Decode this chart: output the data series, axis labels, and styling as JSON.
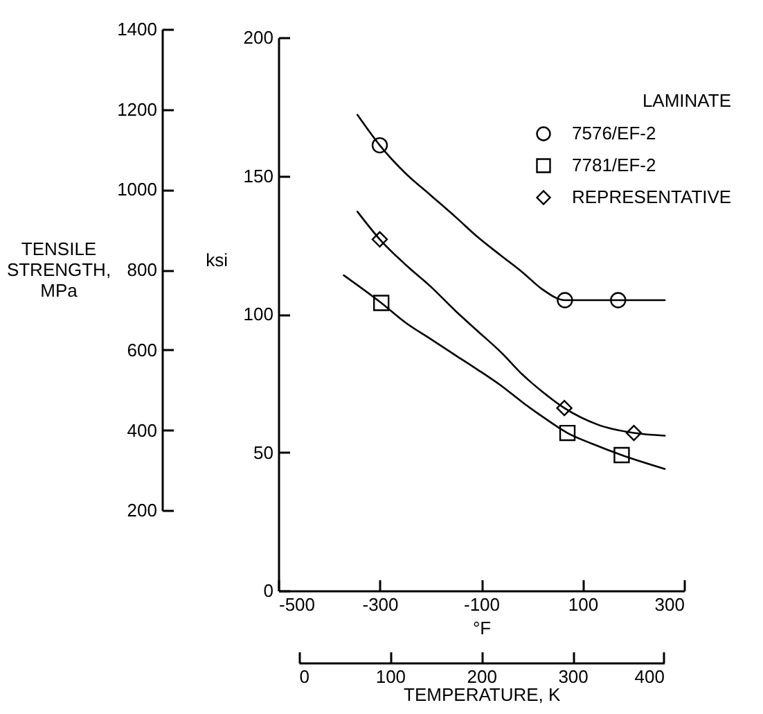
{
  "chart_data": {
    "type": "scatter",
    "xlabel": "°F",
    "ylabel": "ksi",
    "y2label": "TENSILE STRENGTH, MPa",
    "x2label": "TEMPERATURE, K",
    "legend_title": "LAMINATE",
    "xlim": [
      -500,
      300
    ],
    "xticks": [
      -500,
      -300,
      -100,
      100,
      300
    ],
    "ylim": [
      0,
      200
    ],
    "yticks": [
      0,
      50,
      100,
      150,
      200
    ],
    "y2lim": [
      200,
      1400
    ],
    "y2ticks": [
      200,
      400,
      600,
      800,
      1000,
      1200,
      1400
    ],
    "x2lim": [
      0,
      400
    ],
    "x2ticks": [
      0,
      100,
      200,
      300,
      400
    ],
    "legend": "top right",
    "grid": false,
    "series": [
      {
        "name": "7576/EF-2",
        "marker": "circle",
        "color": "#000000",
        "x": [
          -300,
          65,
          170
        ],
        "values": [
          161,
          105,
          105
        ]
      },
      {
        "name": "7781/EF-2",
        "marker": "square",
        "color": "#000000",
        "x": [
          -297,
          70,
          177
        ],
        "values": [
          104,
          57,
          49
        ]
      },
      {
        "name": "REPRESENTATIVE",
        "marker": "diamond",
        "color": "#000000",
        "x": [
          -300,
          64,
          201
        ],
        "values": [
          127,
          66,
          57
        ]
      },
      {
        "type": "line",
        "marker": "none",
        "line_style": "solid",
        "color": "#000000",
        "x": [
          -344,
          -300,
          -250,
          -200,
          -150,
          -108,
          -60,
          -18,
          20,
          65,
          170,
          262
        ],
        "values": [
          172,
          161,
          151,
          143,
          135,
          128,
          121,
          115,
          109,
          105,
          105,
          105
        ]
      },
      {
        "type": "line",
        "marker": "none",
        "line_style": "solid",
        "color": "#000000",
        "x": [
          -371,
          -297,
          -250,
          -200,
          -150,
          -108,
          -60,
          -18,
          20,
          70,
          120,
          177,
          262
        ],
        "values": [
          114,
          104,
          97,
          91,
          85,
          80,
          74,
          68,
          63,
          57,
          53,
          49,
          44
        ]
      },
      {
        "type": "line",
        "marker": "none",
        "line_style": "solid",
        "color": "#000000",
        "x": [
          -344,
          -300,
          -250,
          -200,
          -150,
          -108,
          -60,
          -18,
          20,
          64,
          130,
          201,
          262
        ],
        "values": [
          137,
          127,
          118,
          110,
          101,
          94,
          86,
          78,
          72,
          66,
          60,
          57,
          56
        ]
      }
    ]
  }
}
